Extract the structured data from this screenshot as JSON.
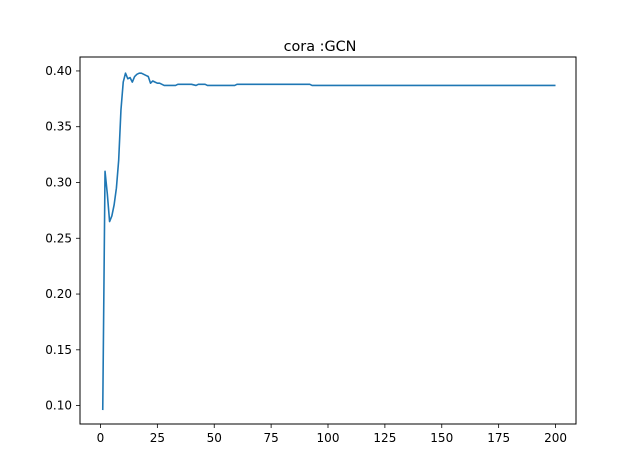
{
  "chart_data": {
    "type": "line",
    "title": "cora :GCN",
    "xlabel": "",
    "ylabel": "",
    "xlim": [
      -9,
      209
    ],
    "ylim": [
      0.0835,
      0.4125
    ],
    "xticks": [
      0,
      25,
      50,
      75,
      100,
      125,
      150,
      175,
      200
    ],
    "xtick_labels": [
      "0",
      "25",
      "50",
      "75",
      "100",
      "125",
      "150",
      "175",
      "200"
    ],
    "yticks": [
      0.1,
      0.15,
      0.2,
      0.25,
      0.3,
      0.35,
      0.4
    ],
    "ytick_labels": [
      "0.10",
      "0.15",
      "0.20",
      "0.25",
      "0.30",
      "0.35",
      "0.40"
    ],
    "grid": false,
    "line_color": "#1f77b4",
    "series": [
      {
        "x": [
          1,
          2,
          3,
          4,
          5,
          6,
          7,
          8,
          9,
          10,
          11,
          12,
          13,
          14,
          15,
          16,
          17,
          18,
          19,
          20,
          21,
          22,
          23,
          24,
          25,
          26,
          27,
          28,
          29,
          30,
          31,
          32,
          33,
          34,
          35,
          36,
          37,
          38,
          40,
          42,
          43,
          44,
          45,
          46,
          47,
          48,
          49,
          50,
          51,
          52,
          55,
          58,
          59,
          60,
          65,
          70,
          80,
          90,
          92,
          93,
          95,
          100,
          120,
          150,
          175,
          200
        ],
        "y": [
          0.096,
          0.31,
          0.29,
          0.265,
          0.27,
          0.28,
          0.295,
          0.32,
          0.365,
          0.39,
          0.398,
          0.393,
          0.394,
          0.39,
          0.395,
          0.397,
          0.398,
          0.398,
          0.397,
          0.396,
          0.395,
          0.389,
          0.391,
          0.39,
          0.389,
          0.389,
          0.388,
          0.387,
          0.387,
          0.387,
          0.387,
          0.387,
          0.387,
          0.388,
          0.388,
          0.388,
          0.388,
          0.388,
          0.388,
          0.387,
          0.388,
          0.388,
          0.388,
          0.388,
          0.387,
          0.387,
          0.387,
          0.387,
          0.387,
          0.387,
          0.387,
          0.387,
          0.387,
          0.388,
          0.388,
          0.388,
          0.388,
          0.388,
          0.388,
          0.387,
          0.387,
          0.387,
          0.387,
          0.387,
          0.387,
          0.387
        ]
      }
    ]
  }
}
